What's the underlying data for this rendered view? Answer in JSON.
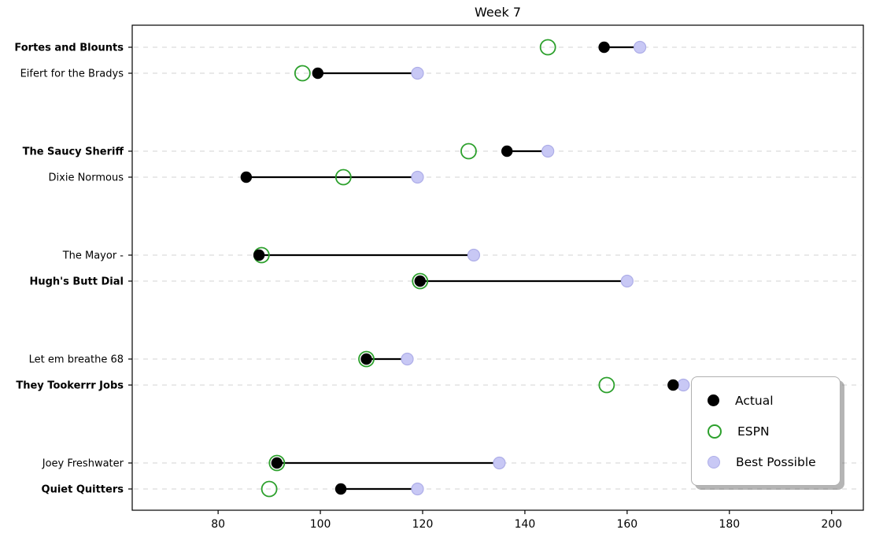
{
  "figure": {
    "background": "#ffffff"
  },
  "chart_data": {
    "type": "scatter",
    "variant": "horizontal-dumbbell",
    "title": "Week 7",
    "categories": [
      "Fortes and Blounts",
      "Eifert  for the Bradys",
      "The Saucy Sheriff",
      "Dixie Normous",
      "The Mayor -",
      "Hugh's  Butt Dial",
      "Let em breathe 68",
      "They Tookerrr Jobs",
      "Joey Freshwater",
      "Quiet Quitters"
    ],
    "category_bold": [
      true,
      false,
      true,
      false,
      false,
      true,
      false,
      true,
      false,
      true
    ],
    "category_grouping": "pairs-of-matchups",
    "series": [
      {
        "name": "Actual",
        "marker": "filled-circle",
        "color": "#000000",
        "values": [
          155.5,
          99.5,
          136.5,
          85.5,
          88,
          119.5,
          109,
          169,
          91.5,
          104
        ]
      },
      {
        "name": "ESPN",
        "marker": "open-circle",
        "color": "#2ca02c",
        "values": [
          144.5,
          96.5,
          129,
          104.5,
          88.5,
          119.5,
          109,
          156,
          91.5,
          90
        ]
      },
      {
        "name": "Best Possible",
        "marker": "filled-circle",
        "color": "#c8c8f5",
        "edge_color": "#aeaee8",
        "values": [
          162.5,
          119,
          144.5,
          119,
          130,
          160,
          117,
          171,
          135,
          119
        ]
      }
    ],
    "connector": {
      "from": "Actual",
      "to": "Best Possible",
      "color": "#000000"
    },
    "xticks": [
      80,
      100,
      120,
      140,
      160,
      180,
      200
    ],
    "xlim": [
      63.2,
      206.2
    ],
    "xlabel": "",
    "ylabel": "",
    "grid": {
      "axis": "y",
      "style": "dashed",
      "color": "#dcdcdc"
    },
    "legend": {
      "position": "lower right",
      "items": [
        "Actual",
        "ESPN",
        "Best Possible"
      ]
    }
  }
}
